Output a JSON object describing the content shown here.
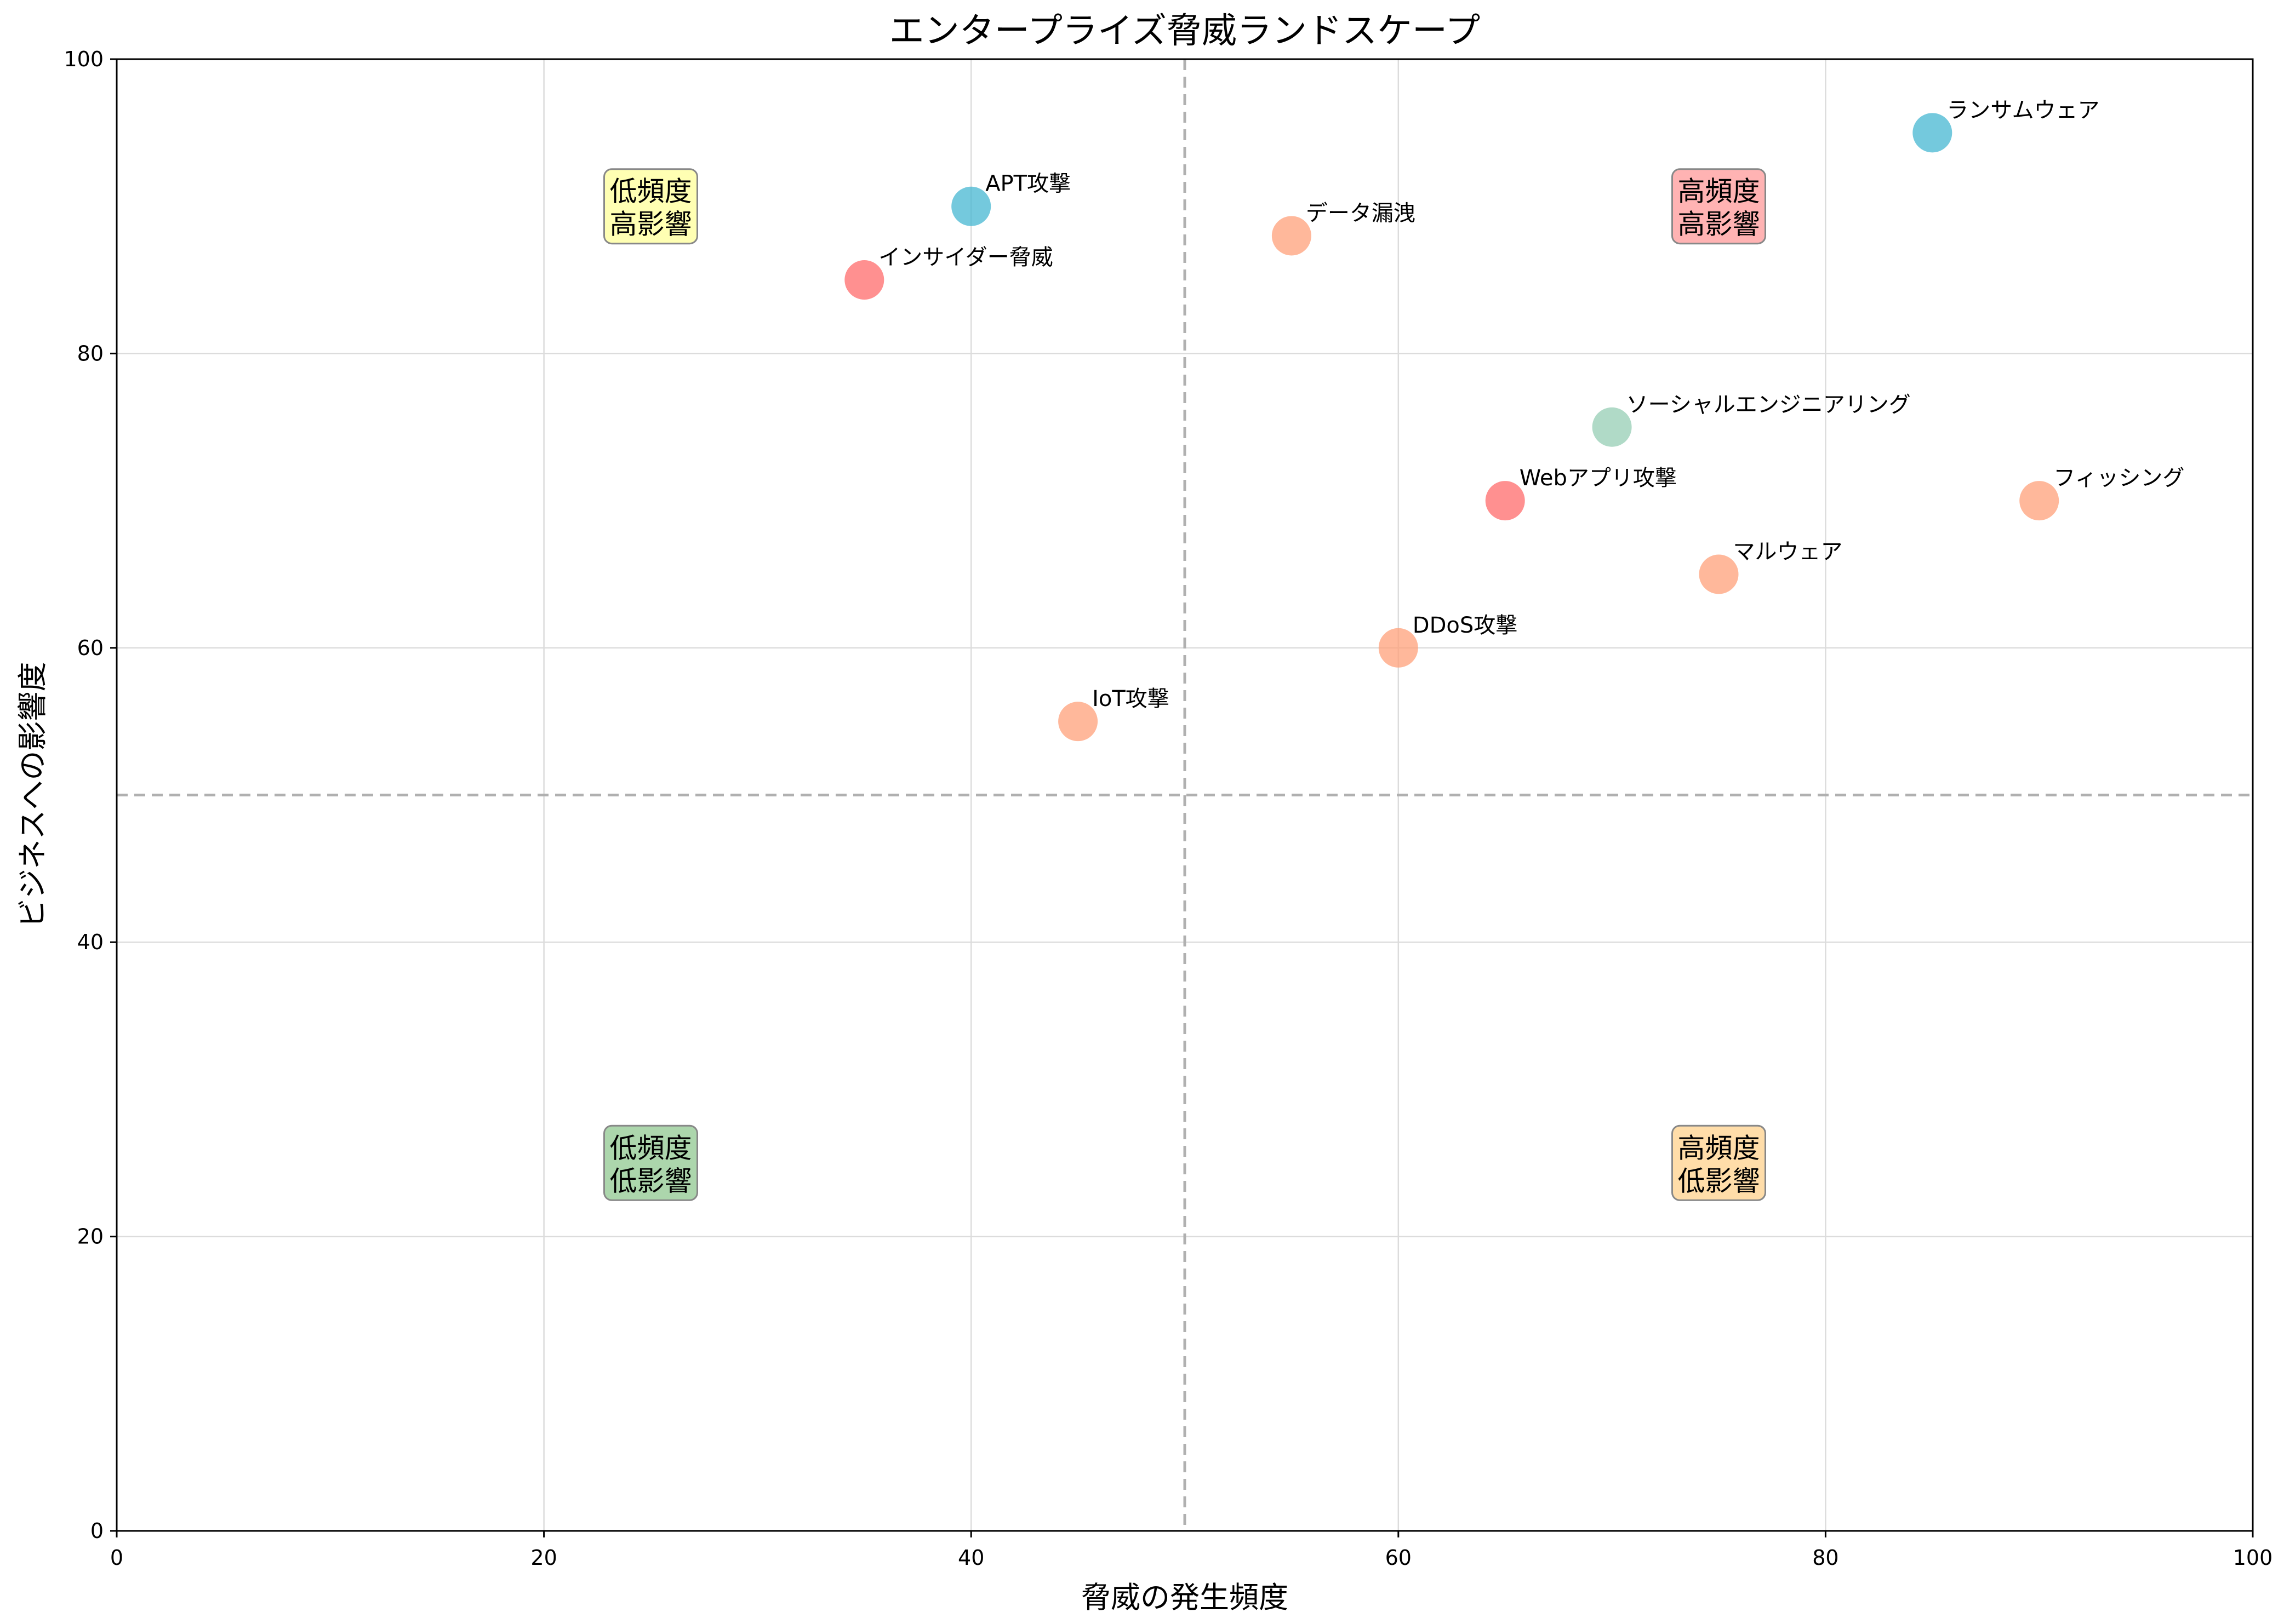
{
  "chart_data": {
    "type": "scatter",
    "title": "エンタープライズ脅威ランドスケープ",
    "xlabel": "脅威の発生頻度",
    "ylabel": "ビジネスへの影響度",
    "xlim": [
      0,
      100
    ],
    "ylim": [
      0,
      100
    ],
    "xticks": [
      "0",
      "20",
      "40",
      "60",
      "80",
      "100"
    ],
    "yticks": [
      "0",
      "20",
      "40",
      "60",
      "80",
      "100"
    ],
    "grid": true,
    "reference_lines": {
      "x": 50,
      "y": 50
    },
    "points": [
      {
        "label": "ランサムウェア",
        "x": 85,
        "y": 95,
        "color": "#45B7D1"
      },
      {
        "label": "APT攻撃",
        "x": 40,
        "y": 90,
        "color": "#45B7D1"
      },
      {
        "label": "データ漏洩",
        "x": 55,
        "y": 88,
        "color": "#FFA07A"
      },
      {
        "label": "インサイダー脅威",
        "x": 35,
        "y": 85,
        "color": "#FF6B6B"
      },
      {
        "label": "ソーシャルエンジニアリング",
        "x": 70,
        "y": 75,
        "color": "#96CEB4"
      },
      {
        "label": "Webアプリ攻撃",
        "x": 65,
        "y": 70,
        "color": "#FF6B6B"
      },
      {
        "label": "フィッシング",
        "x": 90,
        "y": 70,
        "color": "#FFA07A"
      },
      {
        "label": "マルウェア",
        "x": 75,
        "y": 65,
        "color": "#FFA07A"
      },
      {
        "label": "DDoS攻撃",
        "x": 60,
        "y": 60,
        "color": "#FFA07A"
      },
      {
        "label": "IoT攻撃",
        "x": 45,
        "y": 55,
        "color": "#FFA07A"
      }
    ],
    "quadrants": [
      {
        "lines": [
          "低頻度",
          "高影響"
        ],
        "x": 25,
        "y": 90,
        "color": "#FFFF99"
      },
      {
        "lines": [
          "高頻度",
          "高影響"
        ],
        "x": 75,
        "y": 90,
        "color": "#FF9999"
      },
      {
        "lines": [
          "低頻度",
          "低影響"
        ],
        "x": 25,
        "y": 25,
        "color": "#90C890"
      },
      {
        "lines": [
          "高頻度",
          "低影響"
        ],
        "x": 75,
        "y": 25,
        "color": "#FFD28C"
      }
    ]
  }
}
